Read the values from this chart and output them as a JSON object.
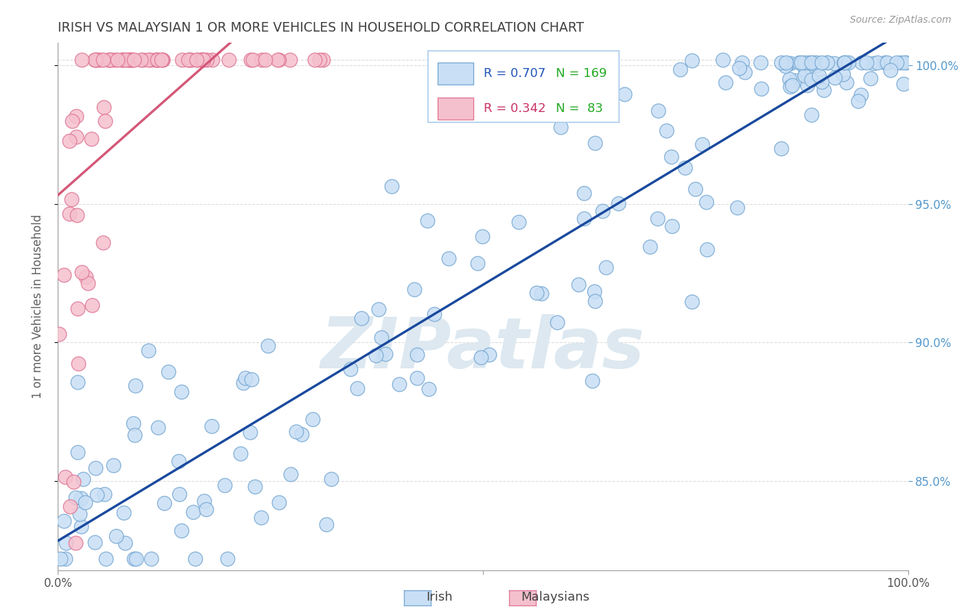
{
  "title": "IRISH VS MALAYSIAN 1 OR MORE VEHICLES IN HOUSEHOLD CORRELATION CHART",
  "source_text": "Source: ZipAtlas.com",
  "ylabel": "1 or more Vehicles in Household",
  "xlim": [
    0.0,
    1.0
  ],
  "ylim": [
    0.818,
    1.008
  ],
  "yticks": [
    0.85,
    0.9,
    0.95,
    1.0
  ],
  "ytick_labels": [
    "85.0%",
    "90.0%",
    "95.0%",
    "100.0%"
  ],
  "legend_irish_r": "R = 0.707",
  "legend_irish_n": "N = 169",
  "legend_malay_r": "R = 0.342",
  "legend_malay_n": "N =  83",
  "irish_color": "#c8dff5",
  "irish_edge": "#7aaad4",
  "malay_color": "#f5c0ce",
  "malay_edge": "#e07898",
  "irish_line_color": "#1a4a9e",
  "malay_line_color": "#d45878",
  "watermark": "ZIPatlas",
  "watermark_color": "#dde8f0",
  "background_color": "#ffffff",
  "grid_color": "#cccccc",
  "title_color": "#404040",
  "axis_label_color": "#606060",
  "tick_color_right": "#5599cc",
  "legend_r_color": "#2255bb",
  "legend_n_color": "#22aa22",
  "legend_malay_r_color": "#cc3366",
  "legend_border_color": "#aaccee"
}
